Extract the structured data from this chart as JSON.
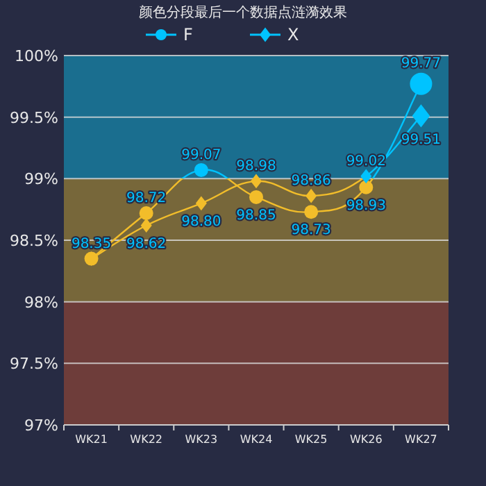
{
  "chart_data": {
    "type": "line",
    "title": "颜色分段最后一个数据点涟漪效果",
    "categories": [
      "WK21",
      "WK22",
      "WK23",
      "WK24",
      "WK25",
      "WK26",
      "WK27"
    ],
    "series": [
      {
        "name": "F",
        "color": "#00c3ff",
        "marker": "circle",
        "colors": [
          "#f2bd2a",
          "#f2bd2a",
          "#00c3ff",
          "#f2bd2a",
          "#f2bd2a",
          "#f2bd2a",
          "#00c3ff"
        ],
        "values": [
          98.35,
          98.72,
          99.07,
          98.85,
          98.73,
          98.93,
          99.77
        ],
        "value_labels": [
          "98.35",
          "98.72",
          "99.07",
          "98.85",
          "98.73",
          "98.93",
          "99.77"
        ]
      },
      {
        "name": "X",
        "color": "#00c3ff",
        "marker": "diamond",
        "colors": [
          "#f2bd2a",
          "#f2bd2a",
          "#f2bd2a",
          "#f2bd2a",
          "#f2bd2a",
          "#00c3ff",
          "#00c3ff"
        ],
        "values": [
          98.35,
          98.62,
          98.8,
          98.98,
          98.86,
          99.02,
          99.51
        ],
        "value_labels": [
          null,
          "98.62",
          "98.80",
          "98.98",
          "98.86",
          "99.02",
          "99.51"
        ]
      }
    ],
    "ylim": [
      97,
      100
    ],
    "yticks": [
      {
        "value": 97,
        "label": "97%"
      },
      {
        "value": 97.5,
        "label": "97.5%"
      },
      {
        "value": 98,
        "label": "98%"
      },
      {
        "value": 98.5,
        "label": "98.5%"
      },
      {
        "value": 99,
        "label": "99%"
      },
      {
        "value": 99.5,
        "label": "99.5%"
      },
      {
        "value": 100,
        "label": "100%"
      }
    ],
    "bands": [
      {
        "axis": "y",
        "from": 97,
        "to": 98,
        "color": "#6e3d3a"
      },
      {
        "axis": "y",
        "from": 98,
        "to": 99,
        "color": "#77673a"
      },
      {
        "axis": "y",
        "from": 99,
        "to": 100,
        "color": "#1a6e8f"
      }
    ],
    "grid": "y",
    "legend": "top"
  }
}
